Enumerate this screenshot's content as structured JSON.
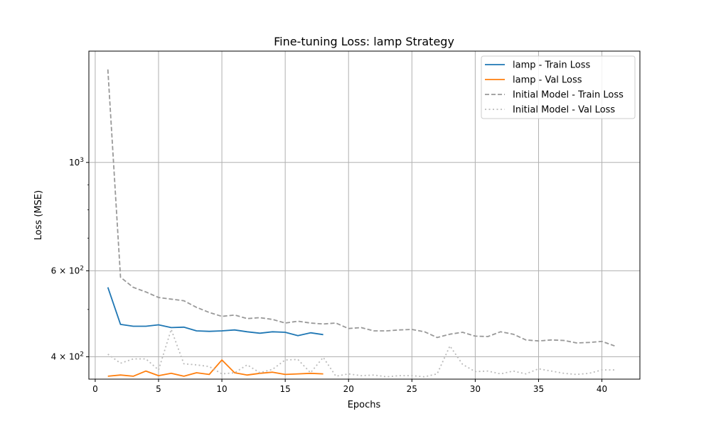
{
  "chart_data": {
    "type": "line",
    "title": "Fine-tuning Loss: lamp Strategy",
    "xlabel": "Epochs",
    "ylabel": "Loss (MSE)",
    "y_scale": "log",
    "xlim": [
      -0.5,
      43.0
    ],
    "ylim": [
      360,
      1690
    ],
    "grid": true,
    "legend_position": "top-right",
    "x_ticks": [
      {
        "value": 0,
        "label": "0"
      },
      {
        "value": 5,
        "label": "5"
      },
      {
        "value": 10,
        "label": "10"
      },
      {
        "value": 15,
        "label": "15"
      },
      {
        "value": 20,
        "label": "20"
      },
      {
        "value": 25,
        "label": "25"
      },
      {
        "value": 30,
        "label": "30"
      },
      {
        "value": 35,
        "label": "35"
      },
      {
        "value": 40,
        "label": "40"
      }
    ],
    "y_ticks": [
      {
        "value": 400,
        "base": "4",
        "exp": "2"
      },
      {
        "value": 600,
        "base": "6",
        "exp": "2"
      },
      {
        "value": 1000,
        "base": "10",
        "exp": "3"
      }
    ],
    "series": [
      {
        "name": "lamp - Train Loss",
        "color": "#1f77b4",
        "style": "solid",
        "x": [
          1,
          2,
          3,
          4,
          5,
          6,
          7,
          8,
          9,
          10,
          11,
          12,
          13,
          14,
          15,
          16,
          17,
          18
        ],
        "y": [
          555,
          466,
          462,
          462,
          465,
          459,
          460,
          452,
          451,
          452,
          454,
          450,
          447,
          450,
          449,
          442,
          448,
          444
        ]
      },
      {
        "name": "lamp - Val Loss",
        "color": "#ff7f0e",
        "style": "solid",
        "x": [
          1,
          2,
          3,
          4,
          5,
          6,
          7,
          8,
          9,
          10,
          11,
          12,
          13,
          14,
          15,
          16,
          17,
          18
        ],
        "y": [
          365,
          367,
          365,
          374,
          366,
          370,
          365,
          371,
          368,
          394,
          371,
          367,
          370,
          372,
          368,
          369,
          370,
          369
        ]
      },
      {
        "name": "Initial Model - Train Loss",
        "color": "#999999",
        "style": "dashed",
        "x": [
          1,
          2,
          3,
          4,
          5,
          6,
          7,
          8,
          9,
          10,
          11,
          12,
          13,
          14,
          15,
          16,
          17,
          18,
          19,
          20,
          21,
          22,
          23,
          24,
          25,
          26,
          27,
          28,
          29,
          30,
          31,
          32,
          33,
          34,
          35,
          36,
          37,
          38,
          39,
          40,
          41
        ],
        "y": [
          1550,
          582,
          555,
          543,
          529,
          525,
          521,
          505,
          493,
          484,
          487,
          479,
          481,
          477,
          469,
          473,
          469,
          467,
          469,
          457,
          459,
          452,
          452,
          454,
          455,
          450,
          438,
          445,
          449,
          441,
          440,
          450,
          445,
          433,
          431,
          433,
          432,
          427,
          428,
          430,
          421
        ]
      },
      {
        "name": "Initial Model - Val Loss",
        "color": "#bbbbbb",
        "style": "dotted",
        "x": [
          1,
          2,
          3,
          4,
          5,
          6,
          7,
          8,
          9,
          10,
          11,
          12,
          13,
          14,
          15,
          16,
          17,
          18,
          19,
          20,
          21,
          22,
          23,
          24,
          25,
          26,
          27,
          28,
          29,
          30,
          31,
          32,
          33,
          34,
          35,
          36,
          37,
          38,
          39,
          40,
          41
        ],
        "y": [
          405,
          388,
          396,
          396,
          376,
          455,
          387,
          385,
          382,
          369,
          371,
          385,
          371,
          377,
          394,
          395,
          371,
          399,
          365,
          369,
          366,
          367,
          364,
          366,
          366,
          364,
          369,
          421,
          386,
          373,
          374,
          369,
          374,
          369,
          378,
          374,
          370,
          368,
          370,
          376,
          376
        ]
      }
    ]
  }
}
